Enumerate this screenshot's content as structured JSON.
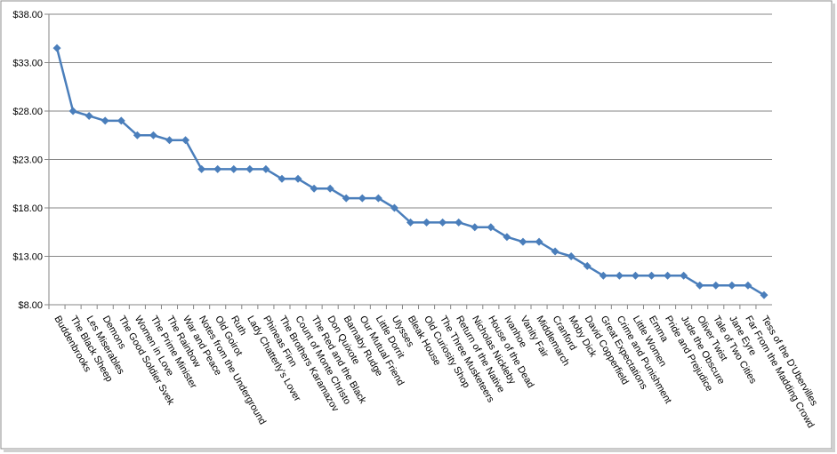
{
  "chart_data": {
    "type": "line",
    "categories": [
      "Buddenbrooks",
      "The Black Sheep",
      "Les Miserables",
      "Demons",
      "The Good Soldier Svek",
      "Women in Love",
      "The Prime Minister",
      "The Rainbow",
      "War and Peace",
      "Notes from the Underground",
      "Old Goirot",
      "Ruth",
      "Lady Chatterly’s Lover",
      "Phineas Finn",
      "The Brothers Karamazov",
      "Count of Monte Christo",
      "The Red and the Black",
      "Don Quixote",
      "Barnaby Rudge",
      "Our Mutual Friend",
      "Little Dorrit",
      "Ulysses",
      "Bleak House",
      "Old Curiosity Shop",
      "The Three Musketeers",
      "Return of the Native",
      "Nicholas Nickleby",
      "House of the Dead",
      "Ivanhoe",
      "Vanity Fair",
      "Middlemarch",
      "Cranford",
      "Moby Dick",
      "David Copperfield",
      "Great Expectations",
      "Crime and Punishment",
      "Little Women",
      "Emma",
      "Pride and Prejudice",
      "Jude the Obscure",
      "Oliver Twist",
      "Tale of Two Cities",
      "Jane Eyre",
      "Far From the Madding Crowd",
      "Tess of the D’Ubervilles"
    ],
    "values": [
      34.5,
      28,
      27.5,
      27,
      27,
      25.5,
      25.5,
      25,
      25,
      22,
      22,
      22,
      22,
      22,
      21,
      21,
      20,
      20,
      19,
      19,
      19,
      18,
      16.5,
      16.5,
      16.5,
      16.5,
      16,
      16,
      15,
      14.5,
      14.5,
      13.5,
      13,
      12,
      11,
      11,
      11,
      11,
      11,
      11,
      10,
      10,
      10,
      10,
      9
    ],
    "color": "#4a7ebb",
    "ylim": [
      8,
      38
    ],
    "yticks": [
      {
        "value": 8,
        "label": "$8.00"
      },
      {
        "value": 13,
        "label": "$13.00"
      },
      {
        "value": 18,
        "label": "$18.00"
      },
      {
        "value": 23,
        "label": "$23.00"
      },
      {
        "value": 28,
        "label": "$28.00"
      },
      {
        "value": 33,
        "label": "$33.00"
      },
      {
        "value": 38,
        "label": "$38.00"
      }
    ],
    "grid": true
  }
}
